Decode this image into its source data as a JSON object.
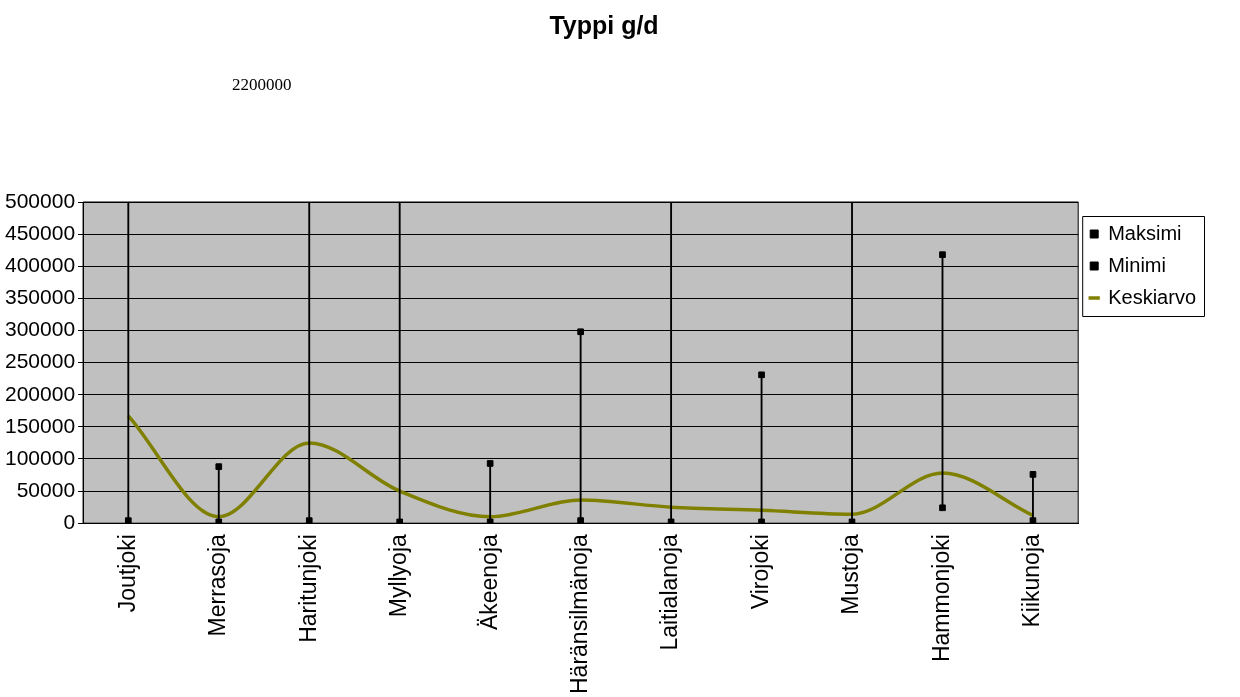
{
  "chart_data": {
    "type": "line",
    "title": "Typpi g/d",
    "annotations": [
      "2200000"
    ],
    "categories": [
      "Joutjoki",
      "Merrasoja",
      "Haritunjoki",
      "Myllyoja",
      "Äkeenoja",
      "Häränsilmänoja",
      "Laitialanoja",
      "Virojoki",
      "Mustoja",
      "Hammonjoki",
      "Kiikunoja"
    ],
    "series": [
      {
        "name": "Maksimi",
        "type": "scatter",
        "marker": "square",
        "color": "#000000",
        "x": [
          "Joutjoki",
          "Merrasoja",
          "Haritunjoki",
          "Myllyoja",
          "Äkeenoja",
          "Häränsilmänoja",
          "Laitialanoja",
          "Virojoki",
          "Mustoja",
          "Hammonjoki",
          "Kiikunoja"
        ],
        "values": [
          null,
          88000,
          null,
          null,
          93000,
          298000,
          null,
          231000,
          null,
          418000,
          76000
        ]
      },
      {
        "name": "Minimi",
        "type": "scatter",
        "marker": "square",
        "color": "#000000",
        "x": [
          "Joutjoki",
          "Merrasoja",
          "Haritunjoki",
          "Myllyoja",
          "Äkeenoja",
          "Häränsilmänoja",
          "Laitialanoja",
          "Virojoki",
          "Mustoja",
          "Hammonjoki",
          "Kiikunoja"
        ],
        "values": [
          4000,
          2000,
          4000,
          2000,
          2000,
          4000,
          2000,
          2000,
          2000,
          24000,
          4000
        ]
      },
      {
        "type": "bar",
        "color": "#000000",
        "base": [
          4000,
          2000,
          4000,
          2000,
          2000,
          4000,
          2000,
          2000,
          2000,
          24000,
          4000
        ],
        "values": [
          496000,
          86000,
          496000,
          498000,
          91000,
          294000,
          498000,
          229000,
          498000,
          394000,
          72000
        ]
      },
      {
        "name": "Keskiarvo",
        "marker": "none",
        "color": "#808000",
        "line_style": "solid",
        "values": [
          167000,
          10000,
          125000,
          50000,
          10000,
          36000,
          25000,
          20000,
          14000,
          78000,
          12000
        ]
      }
    ],
    "ylim": [
      0,
      500000
    ],
    "yticks": [
      0,
      50000,
      100000,
      150000,
      200000,
      250000,
      300000,
      350000,
      400000,
      450000,
      500000
    ],
    "grid": "y",
    "legend": "top right"
  }
}
